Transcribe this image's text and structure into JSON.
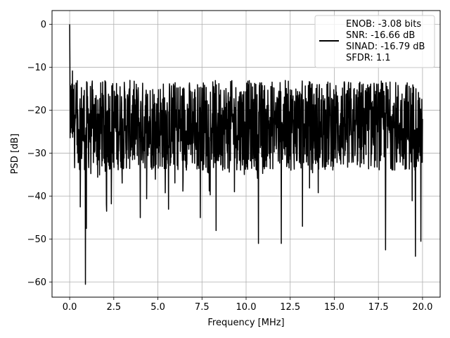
{
  "chart_data": {
    "type": "line",
    "xlabel": "Frequency [MHz]",
    "ylabel": "PSD [dB]",
    "xlim": [
      -1.0,
      21.0
    ],
    "ylim": [
      -63.5,
      3.2
    ],
    "x_ticks": [
      0.0,
      2.5,
      5.0,
      7.5,
      10.0,
      12.5,
      15.0,
      17.5,
      20.0
    ],
    "x_tick_labels": [
      "0.0",
      "2.5",
      "5.0",
      "7.5",
      "10.0",
      "12.5",
      "15.0",
      "17.5",
      "20.0"
    ],
    "y_ticks": [
      0,
      -10,
      -20,
      -30,
      -40,
      -50,
      -60
    ],
    "y_tick_labels": [
      "0",
      "−10",
      "−20",
      "−30",
      "−40",
      "−50",
      "−60"
    ],
    "grid": true,
    "legend_position": "top-right",
    "legend_lines": [
      "ENOB: -3.08 bits",
      "SNR: -16.66 dB",
      "SINAD: -16.79 dB",
      "SFDR: 1.1"
    ],
    "series": [
      {
        "color": "#000000",
        "x_range": [
          0.0,
          20.0
        ],
        "typical_range": [
          -34.0,
          -13.0
        ],
        "peak": {
          "x": 0.0,
          "y": 0.0
        },
        "dips": [
          {
            "x": 0.9,
            "y": -60.5
          },
          {
            "x": 0.6,
            "y": -42.5
          },
          {
            "x": 0.95,
            "y": -47.5
          },
          {
            "x": 2.1,
            "y": -43.5
          },
          {
            "x": 4.0,
            "y": -45.0
          },
          {
            "x": 7.4,
            "y": -45.0
          },
          {
            "x": 8.3,
            "y": -48.0
          },
          {
            "x": 10.7,
            "y": -51.0
          },
          {
            "x": 12.0,
            "y": -51.0
          },
          {
            "x": 13.2,
            "y": -47.0
          },
          {
            "x": 17.9,
            "y": -52.5
          },
          {
            "x": 19.6,
            "y": -54.0
          },
          {
            "x": 19.9,
            "y": -50.5
          }
        ]
      }
    ]
  }
}
